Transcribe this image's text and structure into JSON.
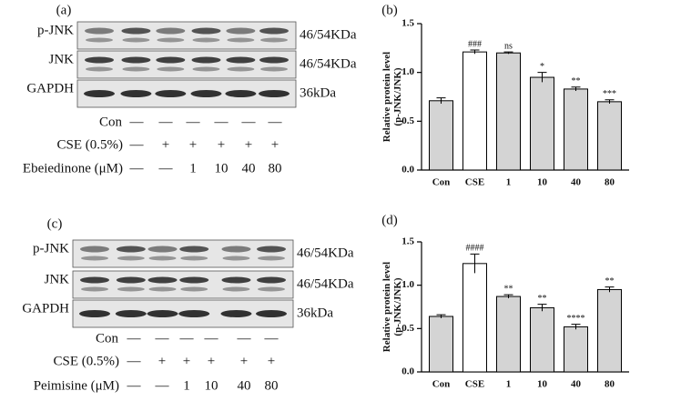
{
  "blots": [
    {
      "label": "(a)",
      "rows": [
        {
          "name": "p-JNK",
          "size": "46/54KDa"
        },
        {
          "name": "JNK",
          "size": "46/54KDa"
        },
        {
          "name": "GAPDH",
          "size": "36kDa"
        }
      ],
      "treatments": [
        {
          "name": "Con",
          "marks": [
            "—",
            "—",
            "—",
            "—",
            "—",
            "—"
          ]
        },
        {
          "name": "CSE (0.5%)",
          "marks": [
            "—",
            "+",
            "+",
            "+",
            "+",
            "+"
          ]
        },
        {
          "name": "Ebeiedinone (μM)",
          "marks": [
            "—",
            "—",
            "1",
            "10",
            "40",
            "80"
          ]
        }
      ]
    },
    {
      "label": "(c)",
      "rows": [
        {
          "name": "p-JNK",
          "size": "46/54KDa"
        },
        {
          "name": "JNK",
          "size": "46/54KDa"
        },
        {
          "name": "GAPDH",
          "size": "36kDa"
        }
      ],
      "treatments": [
        {
          "name": "Con",
          "marks": [
            "—",
            "—",
            "—",
            "—",
            "—",
            "—"
          ]
        },
        {
          "name": "CSE (0.5%)",
          "marks": [
            "—",
            "+",
            "+",
            "+",
            "+",
            "+"
          ]
        },
        {
          "name": "Peimisine (μM)",
          "marks": [
            "—",
            "—",
            "1",
            "10",
            "40",
            "80"
          ]
        }
      ]
    }
  ],
  "chart_data": [
    {
      "type": "bar",
      "label": "(b)",
      "ylabel": [
        "Relative protein level",
        "(p-JNK/JNK)"
      ],
      "categories": [
        "Con",
        "CSE",
        "1",
        "10",
        "40",
        "80"
      ],
      "values": [
        0.71,
        1.21,
        1.2,
        0.95,
        0.83,
        0.7
      ],
      "errors": [
        0.03,
        0.02,
        0.01,
        0.05,
        0.02,
        0.02
      ],
      "annotations": [
        null,
        "###",
        "ns",
        "*",
        "**",
        "***"
      ],
      "colors": [
        "#d4d4d4",
        "#ffffff",
        "#d4d4d4",
        "#d4d4d4",
        "#d4d4d4",
        "#d4d4d4"
      ],
      "ylim": [
        0,
        1.5
      ],
      "yticks": [
        {
          "value": 0,
          "label": "0.0"
        },
        {
          "value": 0.5,
          "label": "0.5"
        },
        {
          "value": 1,
          "label": "1.0"
        },
        {
          "value": 1.5,
          "label": "1.5"
        }
      ]
    },
    {
      "type": "bar",
      "label": "(d)",
      "ylabel": [
        "Relative protein level",
        "(p-JNK/JNK)"
      ],
      "categories": [
        "Con",
        "CSE",
        "1",
        "10",
        "40",
        "80"
      ],
      "values": [
        0.64,
        1.25,
        0.87,
        0.74,
        0.52,
        0.95
      ],
      "errors": [
        0.02,
        0.11,
        0.02,
        0.04,
        0.03,
        0.03
      ],
      "annotations": [
        null,
        "####",
        "**",
        "**",
        "****",
        "**"
      ],
      "colors": [
        "#d4d4d4",
        "#ffffff",
        "#d4d4d4",
        "#d4d4d4",
        "#d4d4d4",
        "#d4d4d4"
      ],
      "ylim": [
        0,
        1.5
      ],
      "yticks": [
        {
          "value": 0,
          "label": "0.0"
        },
        {
          "value": 0.5,
          "label": "0.5"
        },
        {
          "value": 1,
          "label": "1.0"
        },
        {
          "value": 1.5,
          "label": "1.5"
        }
      ]
    }
  ]
}
